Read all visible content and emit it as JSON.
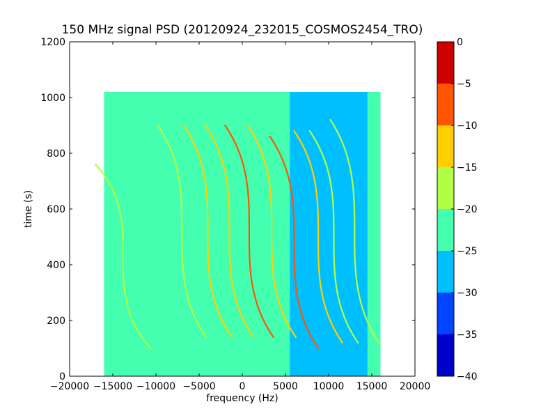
{
  "chart_data": {
    "type": "heatmap",
    "title": "150 MHz signal PSD (20120924_232015_COSMOS2454_TRO)",
    "xlabel": "frequency (Hz)",
    "ylabel": "time (s)",
    "xlim": [
      -20000,
      20000
    ],
    "ylim": [
      0,
      1200
    ],
    "xticks": [
      -20000,
      -15000,
      -10000,
      -5000,
      0,
      5000,
      10000,
      15000,
      20000
    ],
    "yticks": [
      0,
      200,
      400,
      600,
      800,
      1000,
      1200
    ],
    "data_extent": {
      "x": [
        -16000,
        16000
      ],
      "y": [
        0,
        1020
      ]
    },
    "background": {
      "default_level": -22,
      "regions": [
        {
          "x": [
            -16000,
            -9000
          ],
          "level": -24
        },
        {
          "x": [
            4500,
            5500
          ],
          "level": -24
        },
        {
          "x": [
            5500,
            14500
          ],
          "level": -27
        },
        {
          "x": [
            14500,
            16000
          ],
          "level": -24
        }
      ]
    },
    "grid": false,
    "colorbar": {
      "colormap": "jet",
      "range": [
        -40,
        0
      ],
      "ticks": [
        0,
        -5,
        -10,
        -15,
        -20,
        -25,
        -30,
        -35,
        -40
      ],
      "bands": [
        {
          "from": -40,
          "to": -35,
          "color": "#0000cd"
        },
        {
          "from": -35,
          "to": -30,
          "color": "#0044ff"
        },
        {
          "from": -30,
          "to": -25,
          "color": "#00bfff"
        },
        {
          "from": -25,
          "to": -20,
          "color": "#45ffb0"
        },
        {
          "from": -20,
          "to": -15,
          "color": "#b0ff45"
        },
        {
          "from": -15,
          "to": -10,
          "color": "#ffd000"
        },
        {
          "from": -10,
          "to": -5,
          "color": "#ff5500"
        },
        {
          "from": -5,
          "to": 0,
          "color": "#cd0000"
        }
      ]
    },
    "traces": [
      {
        "center_freq": -13800,
        "center_time": 430,
        "amplitude": 3200,
        "half_span": 330,
        "level": -16
      },
      {
        "center_freq": -7000,
        "center_time": 520,
        "amplitude": 2800,
        "half_span": 380,
        "level": -16
      },
      {
        "center_freq": -4000,
        "center_time": 520,
        "amplitude": 2800,
        "half_span": 380,
        "level": -14
      },
      {
        "center_freq": -1500,
        "center_time": 520,
        "amplitude": 2800,
        "half_span": 380,
        "level": -11
      },
      {
        "center_freq": 800,
        "center_time": 520,
        "amplitude": 2800,
        "half_span": 380,
        "level": -5
      },
      {
        "center_freq": 3400,
        "center_time": 520,
        "amplitude": 2800,
        "half_span": 380,
        "level": -11
      },
      {
        "center_freq": 6000,
        "center_time": 480,
        "amplitude": 2800,
        "half_span": 380,
        "level": -8
      },
      {
        "center_freq": 8800,
        "center_time": 500,
        "amplitude": 2800,
        "half_span": 380,
        "level": -14
      },
      {
        "center_freq": 10600,
        "center_time": 500,
        "amplitude": 2800,
        "half_span": 380,
        "level": -16
      },
      {
        "center_freq": 13000,
        "center_time": 520,
        "amplitude": 2800,
        "half_span": 400,
        "level": -18
      }
    ]
  }
}
